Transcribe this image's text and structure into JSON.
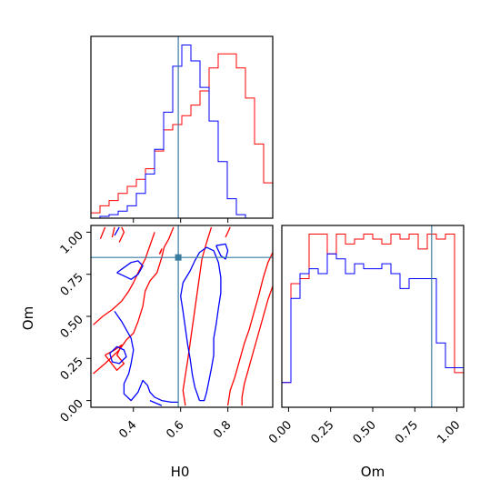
{
  "chart_data": [
    {
      "type": "histogram",
      "panel": "H0 marginal",
      "xlim": [
        0.22,
        0.99
      ],
      "truth": 0.59,
      "bin_edges": [
        0.22,
        0.2585,
        0.297,
        0.3355,
        0.374,
        0.4125,
        0.451,
        0.4895,
        0.528,
        0.5665,
        0.605,
        0.6435,
        0.682,
        0.7205,
        0.759,
        0.7975,
        0.836,
        0.8745,
        0.913,
        0.9515,
        0.99
      ],
      "series": [
        {
          "color": "#ff0000",
          "counts": [
            3,
            7,
            10,
            14,
            18,
            22,
            28,
            38,
            50,
            53,
            58,
            64,
            72,
            85,
            93,
            93,
            85,
            68,
            42,
            20
          ]
        },
        {
          "color": "#0000ff",
          "counts": [
            0,
            1,
            2,
            4,
            7,
            14,
            25,
            39,
            60,
            86,
            98,
            89,
            74,
            55,
            32,
            11,
            2,
            0,
            0,
            0
          ]
        }
      ]
    },
    {
      "type": "histogram",
      "panel": "Om marginal",
      "xlim": [
        -0.04,
        1.04
      ],
      "truth": 0.85,
      "bin_edges": [
        -0.04,
        0.014,
        0.068,
        0.122,
        0.176,
        0.23,
        0.284,
        0.338,
        0.392,
        0.446,
        0.5,
        0.554,
        0.608,
        0.662,
        0.716,
        0.77,
        0.824,
        0.878,
        0.932,
        0.986,
        1.04
      ],
      "series": [
        {
          "color": "#ff0000",
          "counts": [
            5,
            25,
            26,
            35,
            35,
            31,
            35,
            33,
            34,
            35,
            34,
            33,
            35,
            34,
            35,
            32,
            35,
            34,
            35,
            7
          ]
        },
        {
          "color": "#0000ff",
          "counts": [
            5,
            22,
            27,
            28,
            27,
            31,
            30,
            27,
            29,
            28,
            28,
            29,
            27,
            24,
            26,
            26,
            26,
            13,
            8,
            8
          ]
        }
      ]
    },
    {
      "type": "contour",
      "panel": "H0 vs Om",
      "xlabel": "H0",
      "ylabel": "Om",
      "xlim": [
        0.22,
        0.99
      ],
      "ylim": [
        -0.04,
        1.04
      ],
      "x_ticks": [
        0.4,
        0.6,
        0.8
      ],
      "y_ticks": [
        0.0,
        0.25,
        0.5,
        0.75,
        1.0
      ],
      "truth": {
        "x": 0.59,
        "y": 0.85
      },
      "series": [
        {
          "color": "#ff0000",
          "contours": [
            [
              [
                0.23,
                0.16
              ],
              [
                0.28,
                0.22
              ],
              [
                0.31,
                0.26
              ],
              [
                0.34,
                0.3
              ],
              [
                0.37,
                0.36
              ],
              [
                0.4,
                0.4
              ],
              [
                0.42,
                0.47
              ],
              [
                0.44,
                0.56
              ],
              [
                0.45,
                0.65
              ],
              [
                0.47,
                0.71
              ],
              [
                0.5,
                0.76
              ],
              [
                0.52,
                0.85
              ],
              [
                0.53,
                0.91
              ],
              [
                0.55,
                0.96
              ],
              [
                0.57,
                1.03
              ]
            ],
            [
              [
                0.23,
                0.45
              ],
              [
                0.27,
                0.5
              ],
              [
                0.31,
                0.54
              ],
              [
                0.35,
                0.59
              ],
              [
                0.38,
                0.65
              ],
              [
                0.4,
                0.7
              ],
              [
                0.42,
                0.76
              ],
              [
                0.45,
                0.84
              ],
              [
                0.47,
                0.92
              ],
              [
                0.49,
                1.0
              ]
            ],
            [
              [
                0.26,
                0.96
              ],
              [
                0.28,
                1.03
              ]
            ],
            [
              [
                0.31,
                0.97
              ],
              [
                0.32,
                1.03
              ]
            ],
            [
              [
                0.34,
                0.94
              ],
              [
                0.36,
                1.0
              ],
              [
                0.35,
                1.03
              ]
            ],
            [
              [
                0.28,
                0.27
              ],
              [
                0.32,
                0.3
              ],
              [
                0.35,
                0.33
              ],
              [
                0.33,
                0.27
              ],
              [
                0.36,
                0.22
              ],
              [
                0.33,
                0.18
              ],
              [
                0.28,
                0.27
              ]
            ],
            [
              [
                0.51,
                0.87
              ],
              [
                0.52,
                0.9
              ],
              [
                0.515,
                0.88
              ],
              [
                0.51,
                0.87
              ]
            ],
            [
              [
                0.73,
                1.03
              ],
              [
                0.71,
                0.94
              ],
              [
                0.69,
                0.84
              ],
              [
                0.68,
                0.74
              ],
              [
                0.67,
                0.64
              ],
              [
                0.66,
                0.54
              ],
              [
                0.65,
                0.44
              ],
              [
                0.64,
                0.34
              ],
              [
                0.63,
                0.24
              ],
              [
                0.62,
                0.15
              ],
              [
                0.61,
                0.06
              ],
              [
                0.62,
                -0.03
              ]
            ],
            [
              [
                0.99,
                0.88
              ],
              [
                0.97,
                0.82
              ],
              [
                0.95,
                0.73
              ],
              [
                0.93,
                0.62
              ],
              [
                0.91,
                0.52
              ],
              [
                0.89,
                0.42
              ],
              [
                0.87,
                0.34
              ],
              [
                0.85,
                0.24
              ],
              [
                0.83,
                0.14
              ],
              [
                0.81,
                0.06
              ],
              [
                0.8,
                -0.03
              ]
            ],
            [
              [
                0.99,
                0.68
              ],
              [
                0.97,
                0.6
              ],
              [
                0.95,
                0.5
              ],
              [
                0.93,
                0.4
              ],
              [
                0.91,
                0.3
              ],
              [
                0.89,
                0.2
              ],
              [
                0.87,
                0.1
              ],
              [
                0.86,
                0.02
              ],
              [
                0.86,
                -0.03
              ]
            ],
            [
              [
                0.79,
                0.97
              ],
              [
                0.81,
                1.03
              ]
            ]
          ]
        },
        {
          "color": "#0000ff",
          "contours": [
            [
              [
                0.32,
                0.98
              ],
              [
                0.34,
                1.03
              ]
            ],
            [
              [
                0.33,
                0.76
              ],
              [
                0.36,
                0.79
              ],
              [
                0.39,
                0.82
              ],
              [
                0.42,
                0.83
              ],
              [
                0.44,
                0.8
              ],
              [
                0.42,
                0.75
              ],
              [
                0.39,
                0.72
              ],
              [
                0.36,
                0.74
              ],
              [
                0.33,
                0.76
              ]
            ],
            [
              [
                0.32,
                0.53
              ],
              [
                0.35,
                0.47
              ],
              [
                0.37,
                0.42
              ],
              [
                0.39,
                0.37
              ],
              [
                0.4,
                0.3
              ],
              [
                0.39,
                0.22
              ],
              [
                0.38,
                0.16
              ],
              [
                0.36,
                0.1
              ],
              [
                0.36,
                0.04
              ],
              [
                0.39,
                0.0
              ],
              [
                0.42,
                0.05
              ],
              [
                0.44,
                0.12
              ],
              [
                0.46,
                0.09
              ],
              [
                0.47,
                0.05
              ],
              [
                0.49,
                0.02
              ],
              [
                0.52,
                0.0
              ],
              [
                0.56,
                -0.01
              ],
              [
                0.59,
                -0.01
              ]
            ],
            [
              [
                0.3,
                0.28
              ],
              [
                0.33,
                0.32
              ],
              [
                0.36,
                0.3
              ],
              [
                0.37,
                0.26
              ],
              [
                0.34,
                0.22
              ],
              [
                0.31,
                0.23
              ],
              [
                0.3,
                0.28
              ]
            ],
            [
              [
                0.47,
                0.0
              ],
              [
                0.52,
                -0.03
              ]
            ],
            [
              [
                0.68,
                0.0
              ],
              [
                0.66,
                0.08
              ],
              [
                0.65,
                0.15
              ],
              [
                0.64,
                0.25
              ],
              [
                0.63,
                0.33
              ],
              [
                0.62,
                0.43
              ],
              [
                0.61,
                0.53
              ],
              [
                0.6,
                0.62
              ],
              [
                0.61,
                0.7
              ],
              [
                0.64,
                0.77
              ],
              [
                0.66,
                0.83
              ],
              [
                0.68,
                0.88
              ],
              [
                0.71,
                0.91
              ],
              [
                0.74,
                0.89
              ],
              [
                0.76,
                0.82
              ],
              [
                0.77,
                0.73
              ],
              [
                0.77,
                0.64
              ],
              [
                0.76,
                0.55
              ],
              [
                0.75,
                0.45
              ],
              [
                0.74,
                0.37
              ],
              [
                0.74,
                0.27
              ],
              [
                0.73,
                0.19
              ],
              [
                0.72,
                0.12
              ],
              [
                0.71,
                0.05
              ],
              [
                0.7,
                0.0
              ],
              [
                0.68,
                0.0
              ]
            ],
            [
              [
                0.75,
                0.92
              ],
              [
                0.79,
                0.93
              ],
              [
                0.8,
                0.89
              ],
              [
                0.79,
                0.84
              ],
              [
                0.77,
                0.86
              ],
              [
                0.75,
                0.92
              ]
            ]
          ]
        }
      ]
    }
  ]
}
